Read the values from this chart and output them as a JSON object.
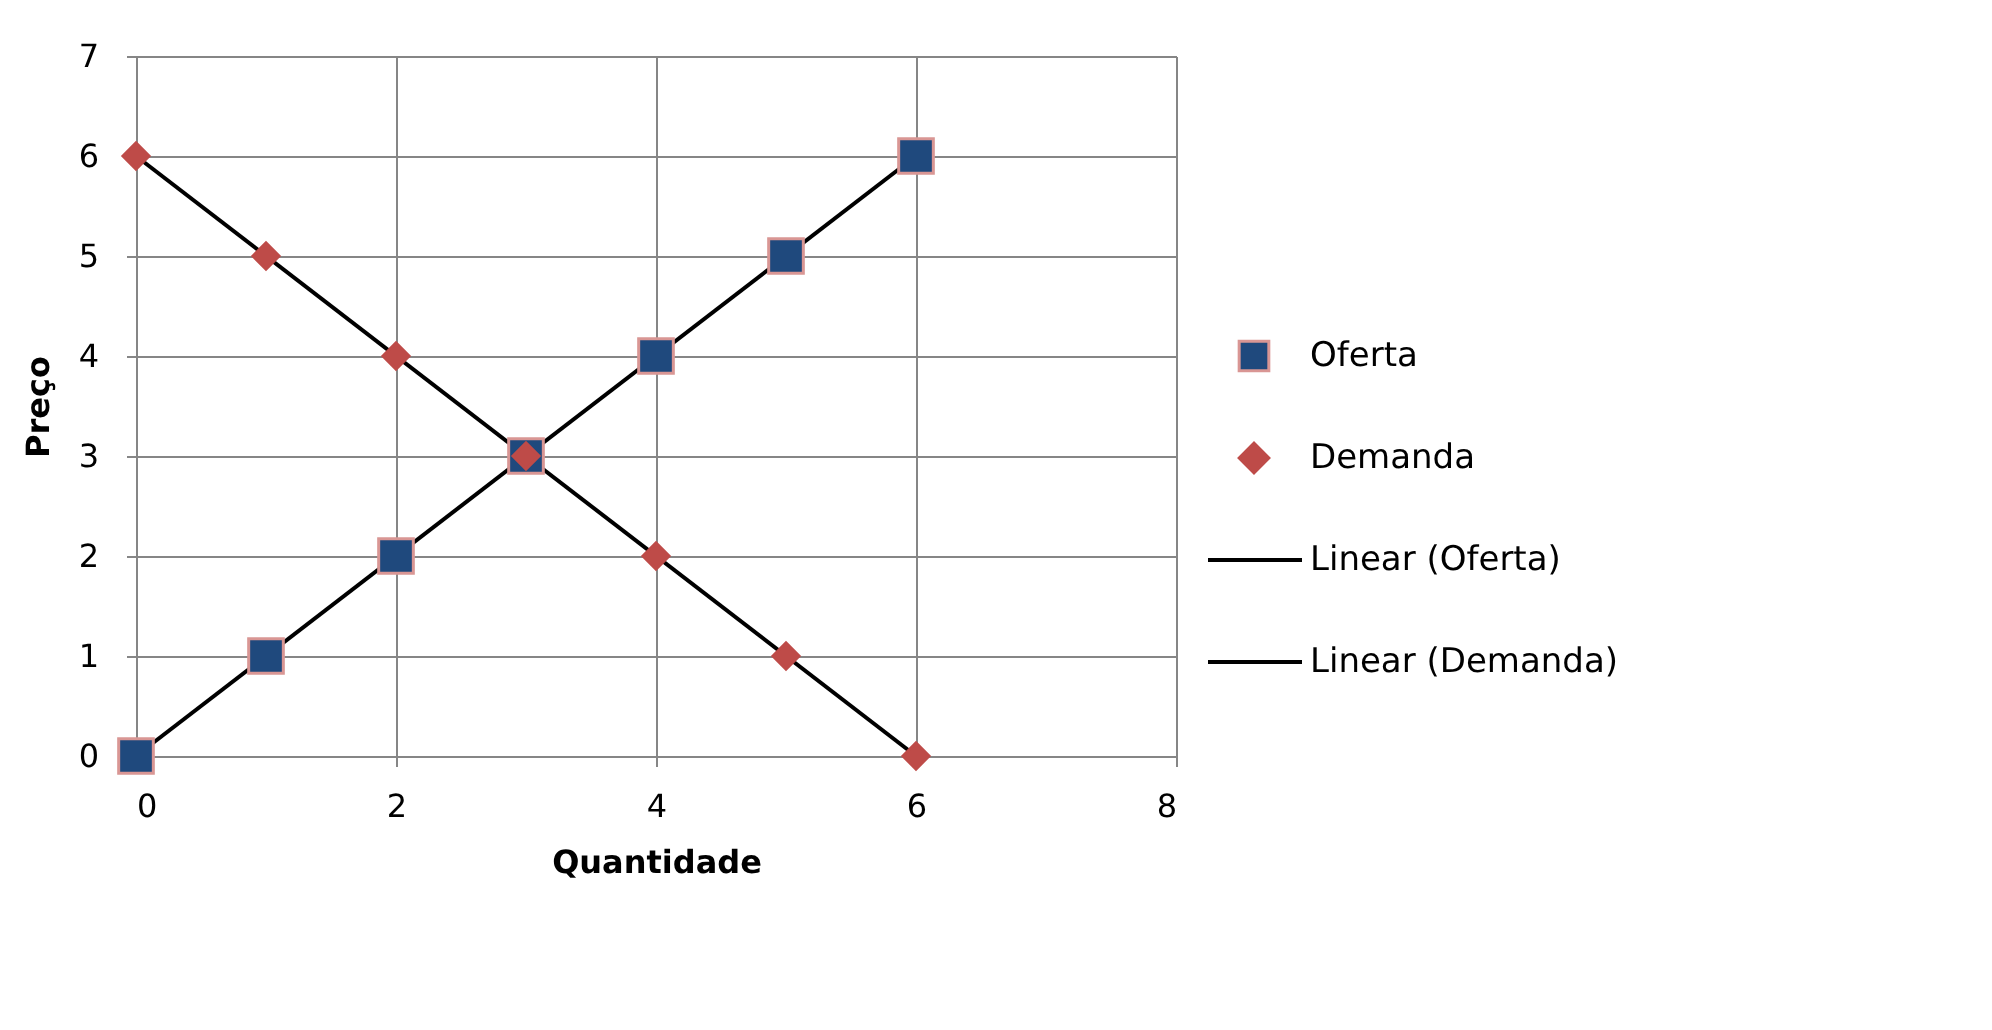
{
  "chart_data": {
    "type": "scatter",
    "xlabel": "Quantidade",
    "ylabel": "Preço",
    "xlim": [
      0,
      8
    ],
    "xticks": [
      0,
      2,
      4,
      6,
      8
    ],
    "ylim": [
      0,
      7
    ],
    "yticks": [
      0,
      1,
      2,
      3,
      4,
      5,
      6,
      7
    ],
    "grid": true,
    "legend": "right",
    "series": [
      {
        "name": "Oferta",
        "marker": "square",
        "color": "#1f497d",
        "x": [
          0,
          1,
          2,
          3,
          4,
          5,
          6
        ],
        "values": [
          0,
          1,
          2,
          3,
          4,
          5,
          6
        ]
      },
      {
        "name": "Demanda",
        "marker": "diamond",
        "color": "#be4b48",
        "x": [
          0,
          1,
          2,
          3,
          4,
          5,
          6
        ],
        "values": [
          6,
          5,
          4,
          3,
          2,
          1,
          0
        ]
      },
      {
        "name": "Linear (Oferta)",
        "type": "line",
        "line_style": "solid",
        "color": "#000000",
        "x": [
          0,
          6
        ],
        "values": [
          0,
          6
        ]
      },
      {
        "name": "Linear (Demanda)",
        "type": "line",
        "line_style": "solid",
        "color": "#000000",
        "x": [
          0,
          6
        ],
        "values": [
          6,
          0
        ]
      }
    ]
  }
}
